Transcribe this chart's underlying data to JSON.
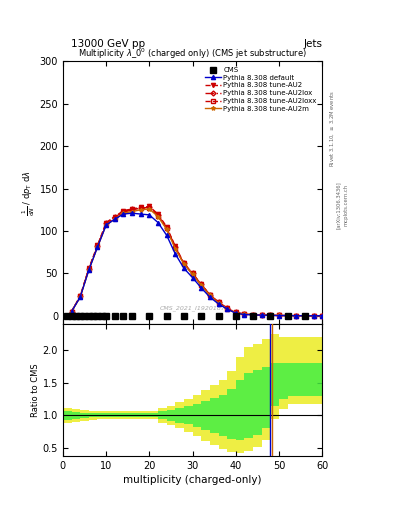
{
  "top_label_left": "13000 GeV pp",
  "top_label_right": "Jets",
  "title": "Multiplicity $\\lambda\\_0^0$ (charged only) (CMS jet substructure)",
  "cms_id": "CMS_2021_I1920187",
  "ylabel_ratio": "Ratio to CMS",
  "xlabel": "multiplicity (charged-only)",
  "xlim": [
    0,
    60
  ],
  "ylim_main": [
    -10,
    300
  ],
  "ylim_ratio": [
    0.38,
    2.4
  ],
  "yticks_main": [
    0,
    50,
    100,
    150,
    200,
    250,
    300
  ],
  "yticks_ratio": [
    0.5,
    1.0,
    1.5,
    2.0
  ],
  "cms_x": [
    1,
    2,
    3,
    4,
    5,
    6,
    7,
    8,
    9,
    10,
    12,
    14,
    16,
    20,
    24,
    28,
    32,
    36,
    40,
    44,
    48,
    52,
    56
  ],
  "cms_y": [
    0,
    0,
    0,
    0,
    0,
    0,
    0,
    0,
    0,
    0,
    0,
    0,
    0,
    0,
    0,
    0,
    0,
    0,
    0,
    0,
    0,
    0,
    0
  ],
  "x_default": [
    2,
    4,
    6,
    8,
    10,
    12,
    14,
    16,
    18,
    20,
    22,
    24,
    26,
    28,
    30,
    32,
    34,
    36,
    38,
    40,
    42,
    44,
    46,
    48,
    50,
    52,
    54,
    56,
    58,
    60
  ],
  "y_default": [
    5,
    22,
    54,
    81,
    107,
    114,
    120,
    121,
    120,
    119,
    110,
    95,
    73,
    56,
    45,
    33,
    22,
    14,
    8,
    3,
    1.5,
    1,
    0.8,
    0.5,
    0.3,
    0.2,
    0.1,
    0.05,
    0.02,
    0.01
  ],
  "x_au2": [
    2,
    4,
    6,
    8,
    10,
    12,
    14,
    16,
    18,
    20,
    22,
    24,
    26,
    28,
    30,
    32,
    34,
    36,
    38,
    40,
    42,
    44,
    46,
    48,
    50,
    52,
    54,
    56,
    58,
    60
  ],
  "y_au2": [
    5,
    23,
    56,
    83,
    110,
    117,
    124,
    126,
    128,
    129,
    120,
    105,
    82,
    62,
    50,
    37,
    25,
    16,
    9,
    4,
    2,
    1.5,
    1,
    0.6,
    0.4,
    0.25,
    0.15,
    0.07,
    0.03,
    0.01
  ],
  "x_au2lox": [
    2,
    4,
    6,
    8,
    10,
    12,
    14,
    16,
    18,
    20,
    22,
    24,
    26,
    28,
    30,
    32,
    34,
    36,
    38,
    40,
    42,
    44,
    46,
    48,
    50,
    52,
    54,
    56,
    58,
    60
  ],
  "y_au2lox": [
    5,
    23,
    55,
    82,
    109,
    116,
    123,
    126,
    127,
    128,
    119,
    104,
    81,
    62,
    50,
    37,
    25,
    16,
    9,
    4,
    2,
    1.5,
    1,
    0.6,
    0.4,
    0.25,
    0.15,
    0.07,
    0.03,
    0.01
  ],
  "x_au2loxx": [
    2,
    4,
    6,
    8,
    10,
    12,
    14,
    16,
    18,
    20,
    22,
    24,
    26,
    28,
    30,
    32,
    34,
    36,
    38,
    40,
    42,
    44,
    46,
    48,
    50,
    52,
    54,
    56,
    58,
    60
  ],
  "y_au2loxx": [
    5,
    23,
    55,
    82,
    108,
    115,
    122,
    125,
    127,
    127,
    118,
    103,
    80,
    61,
    49,
    36,
    24,
    15,
    8,
    3.5,
    1.8,
    1.3,
    0.9,
    0.55,
    0.35,
    0.22,
    0.12,
    0.06,
    0.025,
    0.01
  ],
  "x_au2m": [
    2,
    4,
    6,
    8,
    10,
    12,
    14,
    16,
    18,
    20,
    22,
    24,
    26,
    28,
    30,
    32,
    34,
    36,
    38,
    40,
    42,
    44,
    46,
    48,
    50,
    52,
    54,
    56,
    58,
    60
  ],
  "y_au2m": [
    5,
    22,
    54,
    81,
    107,
    114,
    121,
    123,
    125,
    126,
    117,
    102,
    79,
    61,
    49,
    36,
    24,
    15,
    8,
    3.5,
    1.8,
    1.3,
    0.9,
    0.55,
    0.35,
    0.22,
    0.12,
    0.06,
    0.025,
    0.01
  ],
  "ratio_x_edges": [
    0,
    2,
    4,
    6,
    8,
    10,
    12,
    14,
    16,
    18,
    20,
    22,
    24,
    26,
    28,
    30,
    32,
    34,
    36,
    38,
    40,
    42,
    44,
    46,
    48,
    50,
    52,
    54,
    56,
    58,
    60
  ],
  "ratio_green_low": [
    0.93,
    0.95,
    0.96,
    0.97,
    0.97,
    0.97,
    0.97,
    0.97,
    0.97,
    0.97,
    0.97,
    0.94,
    0.92,
    0.89,
    0.86,
    0.82,
    0.78,
    0.73,
    0.68,
    0.64,
    0.62,
    0.65,
    0.7,
    0.8,
    1.15,
    1.25,
    1.3,
    1.3,
    1.3,
    1.3
  ],
  "ratio_green_high": [
    1.07,
    1.05,
    1.04,
    1.03,
    1.03,
    1.03,
    1.03,
    1.03,
    1.03,
    1.03,
    1.03,
    1.06,
    1.08,
    1.11,
    1.14,
    1.18,
    1.22,
    1.27,
    1.32,
    1.4,
    1.55,
    1.65,
    1.7,
    1.75,
    1.8,
    1.8,
    1.8,
    1.8,
    1.8,
    1.8
  ],
  "ratio_yellow_low": [
    0.88,
    0.9,
    0.92,
    0.93,
    0.94,
    0.94,
    0.94,
    0.94,
    0.94,
    0.94,
    0.94,
    0.89,
    0.85,
    0.8,
    0.75,
    0.68,
    0.61,
    0.55,
    0.49,
    0.44,
    0.42,
    0.45,
    0.52,
    0.62,
    0.95,
    1.1,
    1.18,
    1.18,
    1.18,
    1.18
  ],
  "ratio_yellow_high": [
    1.12,
    1.1,
    1.08,
    1.07,
    1.06,
    1.06,
    1.06,
    1.06,
    1.06,
    1.06,
    1.06,
    1.11,
    1.15,
    1.2,
    1.25,
    1.32,
    1.39,
    1.47,
    1.55,
    1.68,
    1.9,
    2.05,
    2.1,
    2.18,
    2.25,
    2.2,
    2.2,
    2.2,
    2.2,
    2.2
  ],
  "color_default": "#0000cc",
  "color_au2": "#cc0000",
  "color_au2lox": "#cc0000",
  "color_au2loxx": "#cc0000",
  "color_au2m": "#cc6600",
  "color_cms": "#000000",
  "color_green": "#00cc00",
  "color_yellow": "#cccc00",
  "bg_color": "#ffffff"
}
